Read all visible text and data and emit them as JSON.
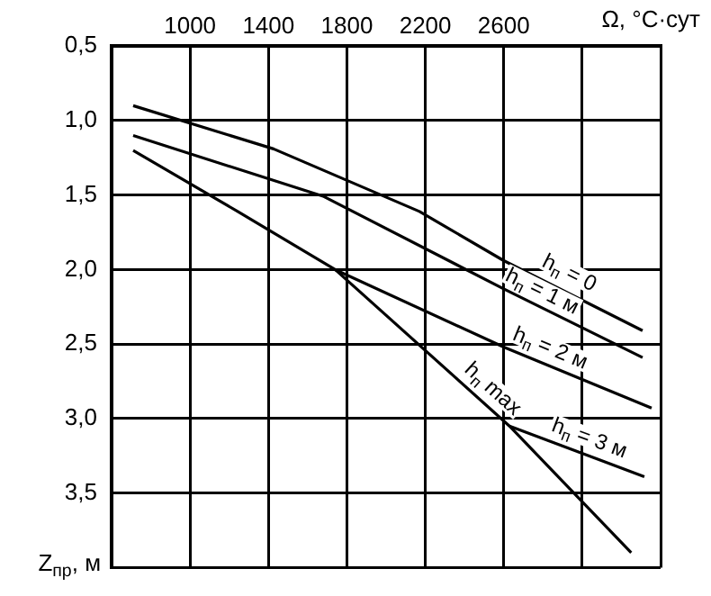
{
  "chart_data": {
    "type": "line",
    "xlabel": "Ω, °С·сут",
    "ylabel": "Z$_{пр}$, м",
    "xlim": [
      600,
      3400
    ],
    "xticks": [
      {
        "value": 600,
        "label": null
      },
      1000,
      1400,
      1800,
      2200,
      2600,
      {
        "value": 3000,
        "label": null
      },
      {
        "value": 3400,
        "label": null
      }
    ],
    "ylim": [
      4.0,
      0.5
    ],
    "yticks": [
      {
        "value": 0.5,
        "label": "0,5"
      },
      {
        "value": 1.0,
        "label": "1,0"
      },
      {
        "value": 1.5,
        "label": "1,5"
      },
      {
        "value": 2.0,
        "label": "2,0"
      },
      {
        "value": 2.5,
        "label": "2,5"
      },
      {
        "value": 3.0,
        "label": "3,0"
      },
      {
        "value": 3.5,
        "label": "3,5"
      },
      {
        "value": 4.0,
        "label": null
      }
    ],
    "grid": true,
    "marker": "none",
    "line_style": "solid",
    "series": [
      {
        "name": "h$_{п}$ = 0",
        "color": "#000000",
        "x": [
          710,
          1426,
          2170,
          2600,
          3308
        ],
        "values": [
          0.9,
          1.19,
          1.61,
          1.94,
          2.41
        ]
      },
      {
        "name": "h$_{п}$ = 1 м",
        "color": "#000000",
        "x": [
          710,
          1683,
          2600,
          3308
        ],
        "values": [
          1.1,
          1.51,
          2.13,
          2.59
        ]
      },
      {
        "name": "h$_{п}$ = 2 м",
        "color": "#000000",
        "x": [
          1740,
          2600,
          3354
        ],
        "values": [
          2.0,
          2.52,
          2.93
        ]
      },
      {
        "name": "h$_{п}$ max",
        "color": "#000000",
        "x": [
          710,
          1243,
          1740,
          2629,
          3250
        ],
        "values": [
          1.2,
          1.61,
          2.0,
          3.05,
          3.9
        ]
      },
      {
        "name": "h$_{п}$ = 3 м",
        "color": "#000000",
        "x": [
          2629,
          3317
        ],
        "values": [
          3.05,
          3.39
        ]
      }
    ]
  }
}
